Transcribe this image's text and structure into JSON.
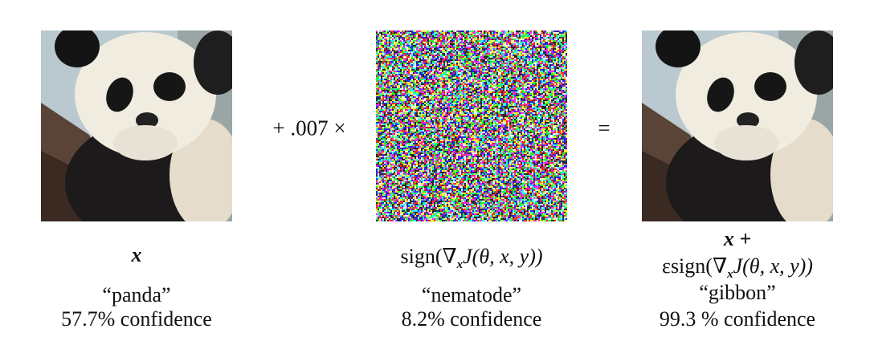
{
  "figure": {
    "operator_plus": "+ .007 ×",
    "operator_equals": "=",
    "columns": [
      {
        "formula": "x",
        "label": "“panda”",
        "confidence": "57.7% confidence",
        "image": "panda"
      },
      {
        "formula_prefix": "sign(∇",
        "formula_sub": "x",
        "formula_rest": "J(θ, x, y))",
        "label": "“nematode”",
        "confidence": "8.2% confidence",
        "image": "noise"
      },
      {
        "formula_line1": "x +",
        "formula_line2_prefix": "εsign(∇",
        "formula_sub": "x",
        "formula_rest": "J(θ, x, y))",
        "label": "“gibbon”",
        "confidence": "99.3 % confidence",
        "image": "panda-adversarial"
      }
    ]
  }
}
